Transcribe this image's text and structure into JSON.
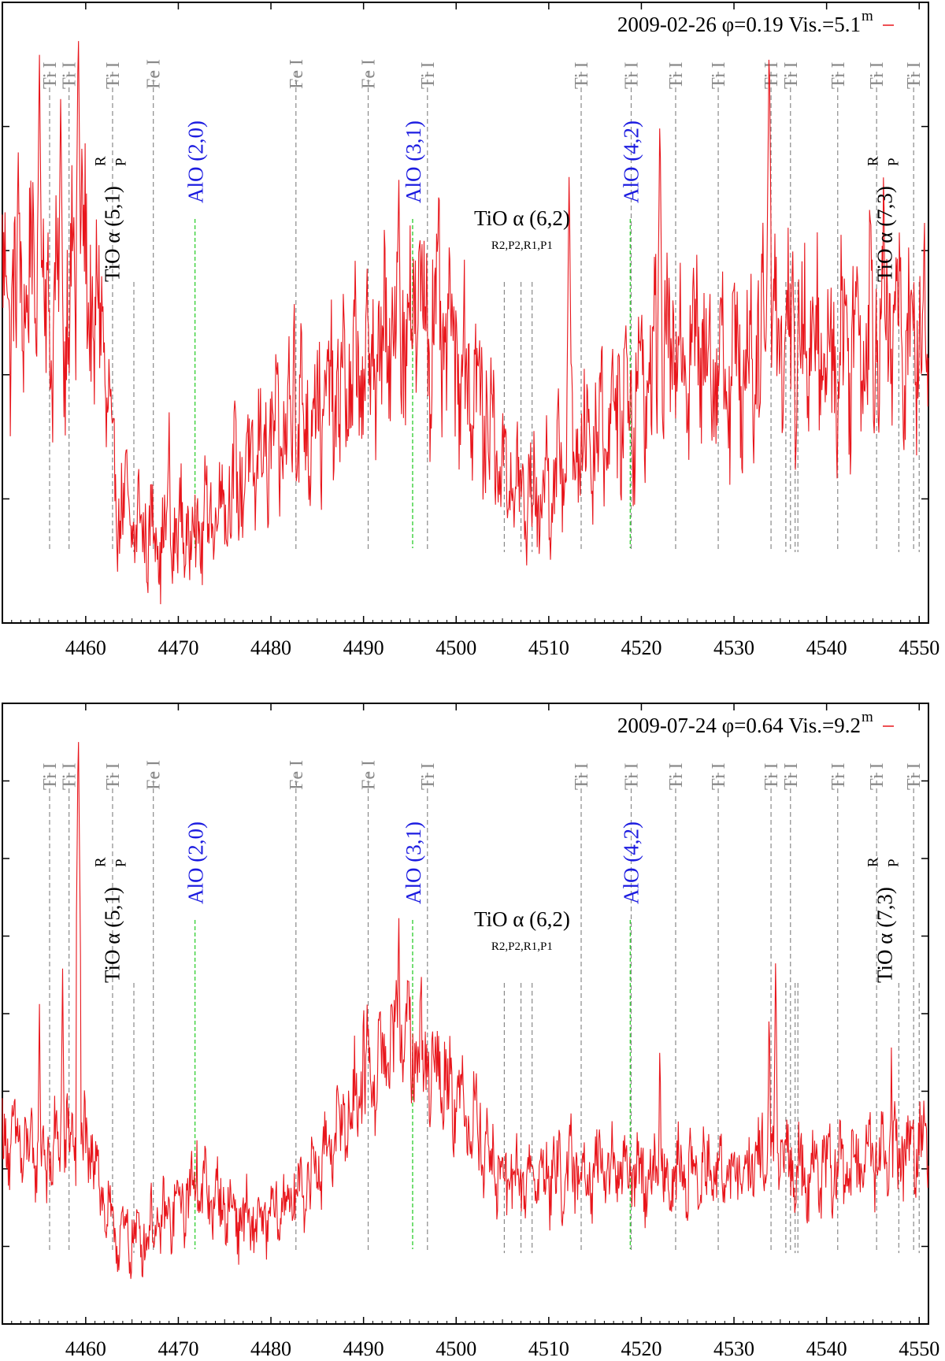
{
  "chart_data": [
    {
      "type": "line",
      "legend": "2009-02-26 φ=0.19 Vis.=5.1",
      "legend_sup": "m",
      "legend_position": "top-right",
      "series_color": "#e8151b",
      "xlim": [
        4451,
        4551
      ],
      "ylim": [
        0,
        1
      ],
      "xticks": [
        4460,
        4470,
        4480,
        4490,
        4500,
        4510,
        4520,
        4530,
        4540,
        4550
      ],
      "envelope": {
        "x": [
          4451,
          4454,
          4456,
          4458,
          4460,
          4462,
          4463,
          4465,
          4468,
          4472,
          4476,
          4480,
          4484,
          4488,
          4492,
          4494,
          4496,
          4498,
          4500,
          4502,
          4504,
          4506,
          4508,
          4510,
          4512,
          4514,
          4516,
          4518,
          4520,
          4522,
          4525,
          4528,
          4531,
          4534,
          4537,
          4540,
          4543,
          4546,
          4548,
          4551
        ],
        "y": [
          0.54,
          0.55,
          0.5,
          0.52,
          0.53,
          0.46,
          0.22,
          0.16,
          0.14,
          0.15,
          0.22,
          0.29,
          0.33,
          0.38,
          0.44,
          0.47,
          0.5,
          0.48,
          0.44,
          0.38,
          0.3,
          0.22,
          0.2,
          0.22,
          0.26,
          0.29,
          0.33,
          0.36,
          0.38,
          0.43,
          0.45,
          0.43,
          0.41,
          0.48,
          0.46,
          0.42,
          0.47,
          0.49,
          0.48,
          0.45
        ]
      },
      "spikes": [
        {
          "x": 4455.0,
          "y": 0.92
        },
        {
          "x": 4457.3,
          "y": 0.86
        },
        {
          "x": 4459.2,
          "y": 0.97
        },
        {
          "x": 4459.6,
          "y": 0.8
        },
        {
          "x": 4469.0,
          "y": 0.36
        },
        {
          "x": 4482.5,
          "y": 0.55
        },
        {
          "x": 4493.8,
          "y": 0.74
        },
        {
          "x": 4496.0,
          "y": 0.66
        },
        {
          "x": 4512.2,
          "y": 0.74
        },
        {
          "x": 4522.0,
          "y": 0.83
        },
        {
          "x": 4533.8,
          "y": 0.95
        },
        {
          "x": 4546.5,
          "y": 0.55
        }
      ],
      "annotations": [
        {
          "text": "AlO (2,0)",
          "x": 4471.8,
          "kind": "alo"
        },
        {
          "text": "AlO (3,1)",
          "x": 4495.3,
          "kind": "alo"
        },
        {
          "text": "AlO (4,2)",
          "x": 4518.8,
          "kind": "alo"
        },
        {
          "text": "TiO α (5,1)",
          "sup": "R",
          "sub": "P",
          "x": 4463.8,
          "kind": "tio"
        },
        {
          "text": "TiO α (7,3)",
          "sup": "R",
          "sub": "P",
          "x": 4547.2,
          "kind": "tio"
        },
        {
          "text": "TiO α (6,2)",
          "sub": "R2,P2,R1,P1",
          "x": 4507.2,
          "kind": "tio-h"
        }
      ]
    },
    {
      "type": "line",
      "legend": "2009-07-24 φ=0.64 Vis.=9.2",
      "legend_sup": "m",
      "legend_position": "top-right",
      "series_color": "#e8151b",
      "xlim": [
        4451,
        4551
      ],
      "ylim": [
        0,
        1
      ],
      "xticks": [
        4460,
        4470,
        4480,
        4490,
        4500,
        4510,
        4520,
        4530,
        4540,
        4550
      ],
      "envelope": {
        "x": [
          4451,
          4453,
          4455,
          4457,
          4459,
          4461,
          4462.5,
          4464,
          4466,
          4468,
          4470,
          4472,
          4474,
          4476,
          4478,
          4480,
          4482,
          4484,
          4486,
          4488,
          4490,
          4492,
          4494,
          4496,
          4498,
          4500,
          4502,
          4503.5,
          4505,
          4510,
          4515,
          4520,
          4525,
          4530,
          4534,
          4538,
          4542,
          4546,
          4548,
          4551
        ],
        "y": [
          0.3,
          0.29,
          0.26,
          0.28,
          0.3,
          0.27,
          0.16,
          0.14,
          0.14,
          0.16,
          0.19,
          0.22,
          0.2,
          0.18,
          0.16,
          0.17,
          0.2,
          0.23,
          0.28,
          0.33,
          0.38,
          0.43,
          0.46,
          0.44,
          0.41,
          0.37,
          0.33,
          0.27,
          0.23,
          0.24,
          0.25,
          0.24,
          0.24,
          0.24,
          0.27,
          0.25,
          0.25,
          0.27,
          0.28,
          0.3
        ]
      },
      "spikes": [
        {
          "x": 4459.2,
          "y": 0.97
        },
        {
          "x": 4457.5,
          "y": 0.58
        },
        {
          "x": 4455.0,
          "y": 0.52
        },
        {
          "x": 4493.8,
          "y": 0.68
        },
        {
          "x": 4490.0,
          "y": 0.55
        },
        {
          "x": 4497.0,
          "y": 0.48
        },
        {
          "x": 4522.0,
          "y": 0.47
        },
        {
          "x": 4533.8,
          "y": 0.53
        },
        {
          "x": 4534.5,
          "y": 0.6
        },
        {
          "x": 4547.0,
          "y": 0.45
        },
        {
          "x": 4472.0,
          "y": 0.32
        }
      ],
      "annotations": [
        {
          "text": "AlO (2,0)",
          "x": 4471.8,
          "kind": "alo"
        },
        {
          "text": "AlO (3,1)",
          "x": 4495.3,
          "kind": "alo"
        },
        {
          "text": "AlO (4,2)",
          "x": 4518.8,
          "kind": "alo"
        },
        {
          "text": "TiO α (5,1)",
          "sup": "R",
          "sub": "P",
          "x": 4463.8,
          "kind": "tio"
        },
        {
          "text": "TiO α (7,3)",
          "sup": "R",
          "sub": "P",
          "x": 4547.2,
          "kind": "tio"
        },
        {
          "text": "TiO α (6,2)",
          "sub": "R2,P2,R1,P1",
          "x": 4507.2,
          "kind": "tio-h"
        }
      ]
    }
  ],
  "line_ids": [
    {
      "x": 4456.1,
      "label": "Ti I"
    },
    {
      "x": 4458.2,
      "label": "Ti I"
    },
    {
      "x": 4462.9,
      "label": "Ti I"
    },
    {
      "x": 4467.3,
      "label": "Fe I"
    },
    {
      "x": 4482.7,
      "label": "Fe I"
    },
    {
      "x": 4490.5,
      "label": "Fe I"
    },
    {
      "x": 4496.9,
      "label": "Ti I"
    },
    {
      "x": 4513.5,
      "label": "Ti I"
    },
    {
      "x": 4518.9,
      "label": "Ti I"
    },
    {
      "x": 4523.7,
      "label": "Ti I"
    },
    {
      "x": 4528.3,
      "label": "Ti I"
    },
    {
      "x": 4534.0,
      "label": "Ti I"
    },
    {
      "x": 4536.1,
      "label": "Ti I"
    },
    {
      "x": 4541.2,
      "label": "Ti I"
    },
    {
      "x": 4545.4,
      "label": "Ti I"
    },
    {
      "x": 4549.4,
      "label": "Ti I"
    }
  ],
  "extra_line_ids_unlabeled": [
    4465.2,
    4505.2,
    4507.0,
    4508.2,
    4535.6,
    4536.6,
    4536.9,
    4547.8,
    4550.0
  ],
  "alo_heads": [
    4471.8,
    4495.3,
    4518.8
  ],
  "colors": {
    "spectrum": "#e8151b",
    "alo_text": "#1c1ce0",
    "alo_line": "#3bd13b",
    "line_id": "#8a8a8a",
    "axis": "#000000"
  }
}
